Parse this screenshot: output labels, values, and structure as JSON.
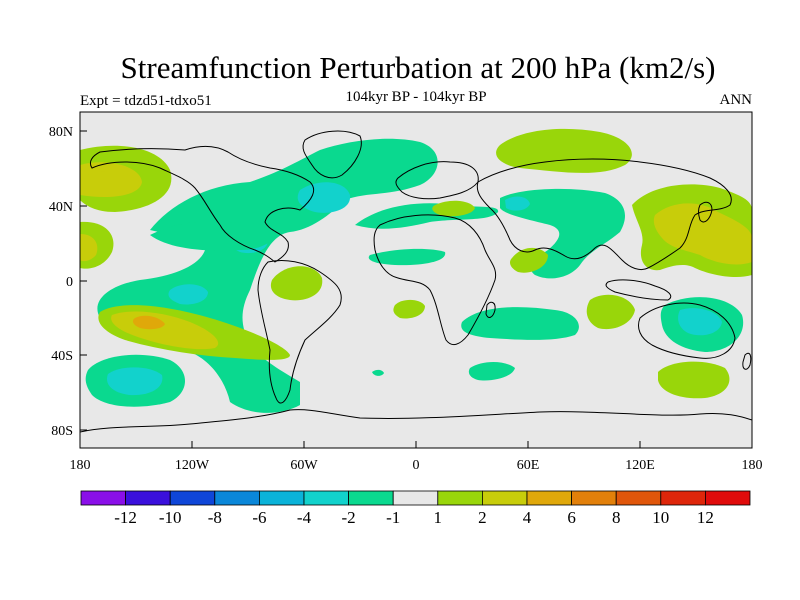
{
  "title": "Streamfunction Perturbation at 200 hPa (km2/s)",
  "subtitle": "104kyr BP - 104kyr BP",
  "left_label": "Expt = tdzd51-tdxo51",
  "right_label": "ANN",
  "chart_data": {
    "type": "contour-map",
    "title": "Streamfunction Perturbation at 200 hPa (km2/s)",
    "x_ticks": [
      "180",
      "120W",
      "60W",
      "0",
      "60E",
      "120E",
      "180"
    ],
    "y_ticks": [
      "80N",
      "40N",
      "0",
      "40S",
      "80S"
    ],
    "colorbar": {
      "labels": [
        "-12",
        "-10",
        "-8",
        "-6",
        "-4",
        "-2",
        "-1",
        "1",
        "2",
        "4",
        "6",
        "8",
        "10",
        "12"
      ],
      "colors": [
        "#8a0fe8",
        "#3a10dc",
        "#0f46d8",
        "#0a87d9",
        "#0ab3d9",
        "#12d2cc",
        "#0ad98f",
        "#e8e8e8",
        "#99d60a",
        "#c8cd0a",
        "#e0a80a",
        "#e2800a",
        "#e0560a",
        "#de260a",
        "#e00b0b"
      ]
    },
    "background_color": "#e8e8e8"
  }
}
